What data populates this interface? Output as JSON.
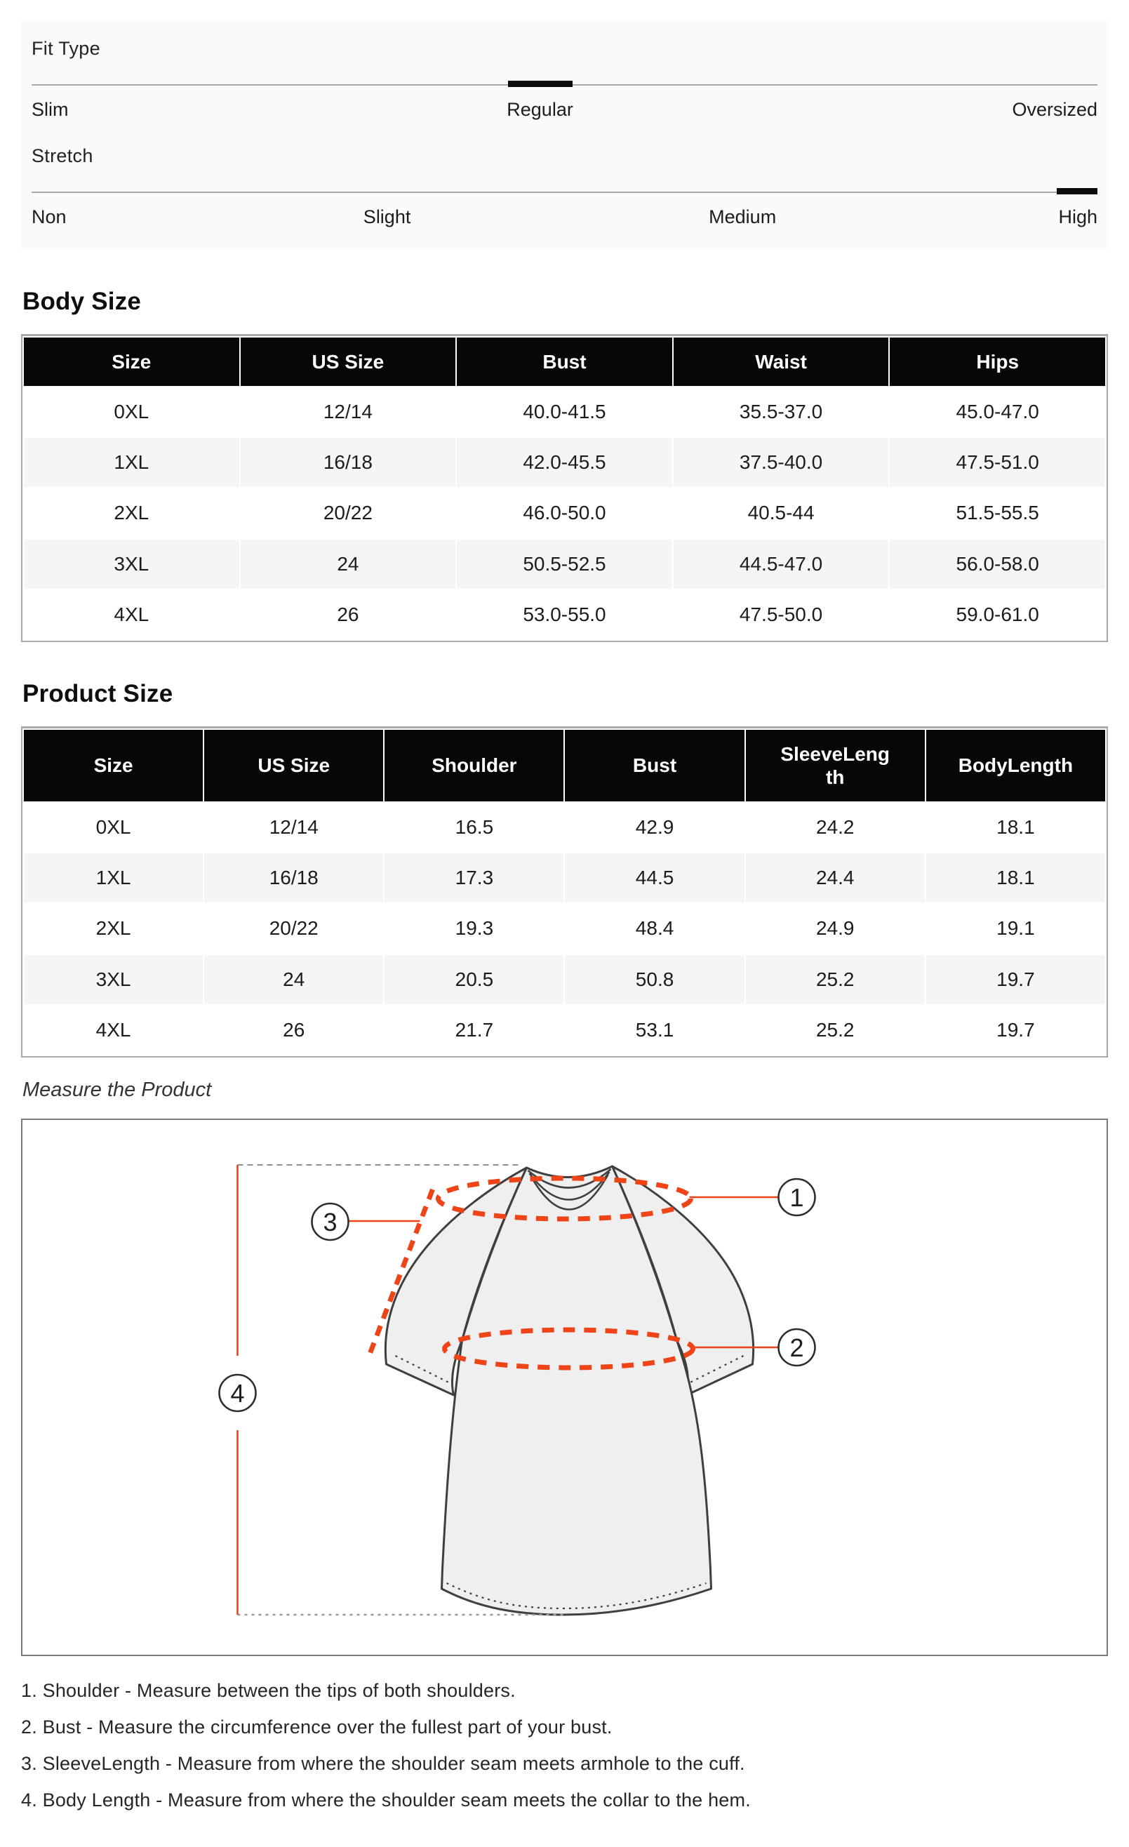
{
  "fit_panel": {
    "fit_type": {
      "label": "Fit Type",
      "options": [
        "Slim",
        "Regular",
        "Oversized"
      ],
      "selected": "Regular"
    },
    "stretch": {
      "label": "Stretch",
      "options": [
        "Non",
        "Slight",
        "Medium",
        "High"
      ],
      "selected": "High"
    }
  },
  "body_size": {
    "title": "Body Size",
    "columns": [
      "Size",
      "US Size",
      "Bust",
      "Waist",
      "Hips"
    ],
    "rows": [
      [
        "0XL",
        "12/14",
        "40.0-41.5",
        "35.5-37.0",
        "45.0-47.0"
      ],
      [
        "1XL",
        "16/18",
        "42.0-45.5",
        "37.5-40.0",
        "47.5-51.0"
      ],
      [
        "2XL",
        "20/22",
        "46.0-50.0",
        "40.5-44",
        "51.5-55.5"
      ],
      [
        "3XL",
        "24",
        "50.5-52.5",
        "44.5-47.0",
        "56.0-58.0"
      ],
      [
        "4XL",
        "26",
        "53.0-55.0",
        "47.5-50.0",
        "59.0-61.0"
      ]
    ]
  },
  "product_size": {
    "title": "Product Size",
    "columns": [
      "Size",
      "US Size",
      "Shoulder",
      "Bust",
      "SleeveLength",
      "BodyLength"
    ],
    "rows": [
      [
        "0XL",
        "12/14",
        "16.5",
        "42.9",
        "24.2",
        "18.1"
      ],
      [
        "1XL",
        "16/18",
        "17.3",
        "44.5",
        "24.4",
        "18.1"
      ],
      [
        "2XL",
        "20/22",
        "19.3",
        "48.4",
        "24.9",
        "19.1"
      ],
      [
        "3XL",
        "24",
        "20.5",
        "50.8",
        "25.2",
        "19.7"
      ],
      [
        "4XL",
        "26",
        "21.7",
        "53.1",
        "25.2",
        "19.7"
      ]
    ]
  },
  "measure": {
    "caption": "Measure the Product",
    "marker_labels": [
      "1",
      "2",
      "3",
      "4"
    ],
    "instructions": [
      "1. Shoulder - Measure between the tips of both shoulders.",
      "2. Bust - Measure the circumference over the fullest part of your bust.",
      "3. SleeveLength - Measure from where the shoulder seam meets armhole to the cuff.",
      "4. Body Length - Measure from where the shoulder seam meets the collar to the hem."
    ]
  },
  "colors": {
    "accent": "#ee4418",
    "header_bg": "#070707",
    "row_alt": "#f5f5f5",
    "panel_bg": "#fafafa"
  }
}
